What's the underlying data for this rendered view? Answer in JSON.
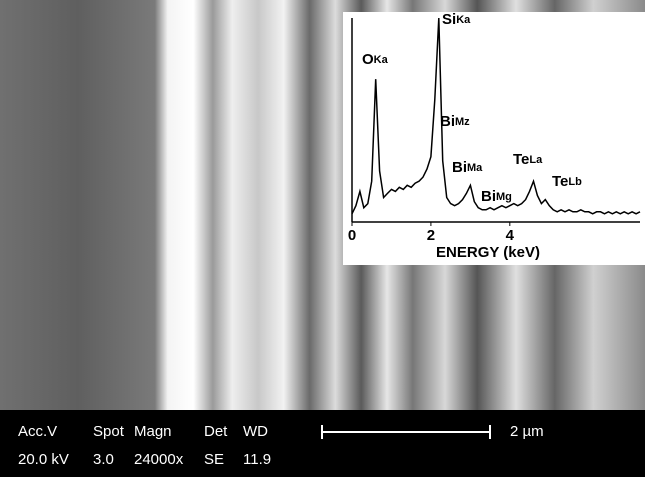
{
  "chart_data": {
    "type": "line",
    "xlabel": "ENERGY (keV)",
    "x": [
      0.0,
      0.1,
      0.2,
      0.3,
      0.4,
      0.5,
      0.6,
      0.7,
      0.8,
      0.9,
      1.0,
      1.1,
      1.2,
      1.3,
      1.4,
      1.5,
      1.6,
      1.7,
      1.8,
      1.9,
      2.0,
      2.1,
      2.2,
      2.3,
      2.4,
      2.5,
      2.6,
      2.7,
      2.8,
      2.9,
      3.0,
      3.1,
      3.2,
      3.3,
      3.4,
      3.5,
      3.6,
      3.7,
      3.8,
      3.9,
      4.0,
      4.1,
      4.2,
      4.3,
      4.4,
      4.5,
      4.6,
      4.7,
      4.8,
      4.9,
      5.0,
      5.1,
      5.2,
      5.3,
      5.4,
      5.5,
      5.6,
      5.7,
      5.8,
      5.9,
      6.0,
      6.1,
      6.2,
      6.3,
      6.4,
      6.5,
      6.6,
      6.7,
      6.8,
      6.9,
      7.0,
      7.1,
      7.2,
      7.3
    ],
    "values": [
      4,
      8,
      15,
      7,
      9,
      20,
      70,
      25,
      12,
      14,
      16,
      15,
      17,
      16,
      18,
      17,
      19,
      20,
      22,
      26,
      32,
      60,
      100,
      30,
      12,
      9,
      8,
      9,
      11,
      14,
      18,
      10,
      7,
      6,
      6,
      7,
      6,
      7,
      8,
      7,
      8,
      9,
      8,
      9,
      11,
      15,
      20,
      13,
      9,
      11,
      8,
      6,
      5,
      6,
      5,
      6,
      5,
      5,
      6,
      5,
      5,
      4,
      5,
      5,
      4,
      5,
      4,
      5,
      4,
      5,
      4,
      5,
      4,
      5
    ],
    "color": "#000000",
    "xlim": [
      0,
      7.3
    ],
    "xticks": [
      0,
      2,
      4
    ],
    "ylim": [
      0,
      100
    ],
    "annotations": [
      {
        "element": "O",
        "line": "Ka"
      },
      {
        "element": "Si",
        "line": "Ka"
      },
      {
        "element": "Bi",
        "line": "Mz"
      },
      {
        "element": "Bi",
        "line": "Ma"
      },
      {
        "element": "Bi",
        "line": "Mg"
      },
      {
        "element": "Te",
        "line": "La"
      },
      {
        "element": "Te",
        "line": "Lb"
      }
    ]
  },
  "sem_info": {
    "headers": [
      "Acc.V",
      "Spot",
      "Magn",
      "Det",
      "WD"
    ],
    "values": [
      "20.0 kV",
      "3.0",
      "24000x",
      "SE",
      "11.9"
    ],
    "scale_bar": "2 µm"
  }
}
